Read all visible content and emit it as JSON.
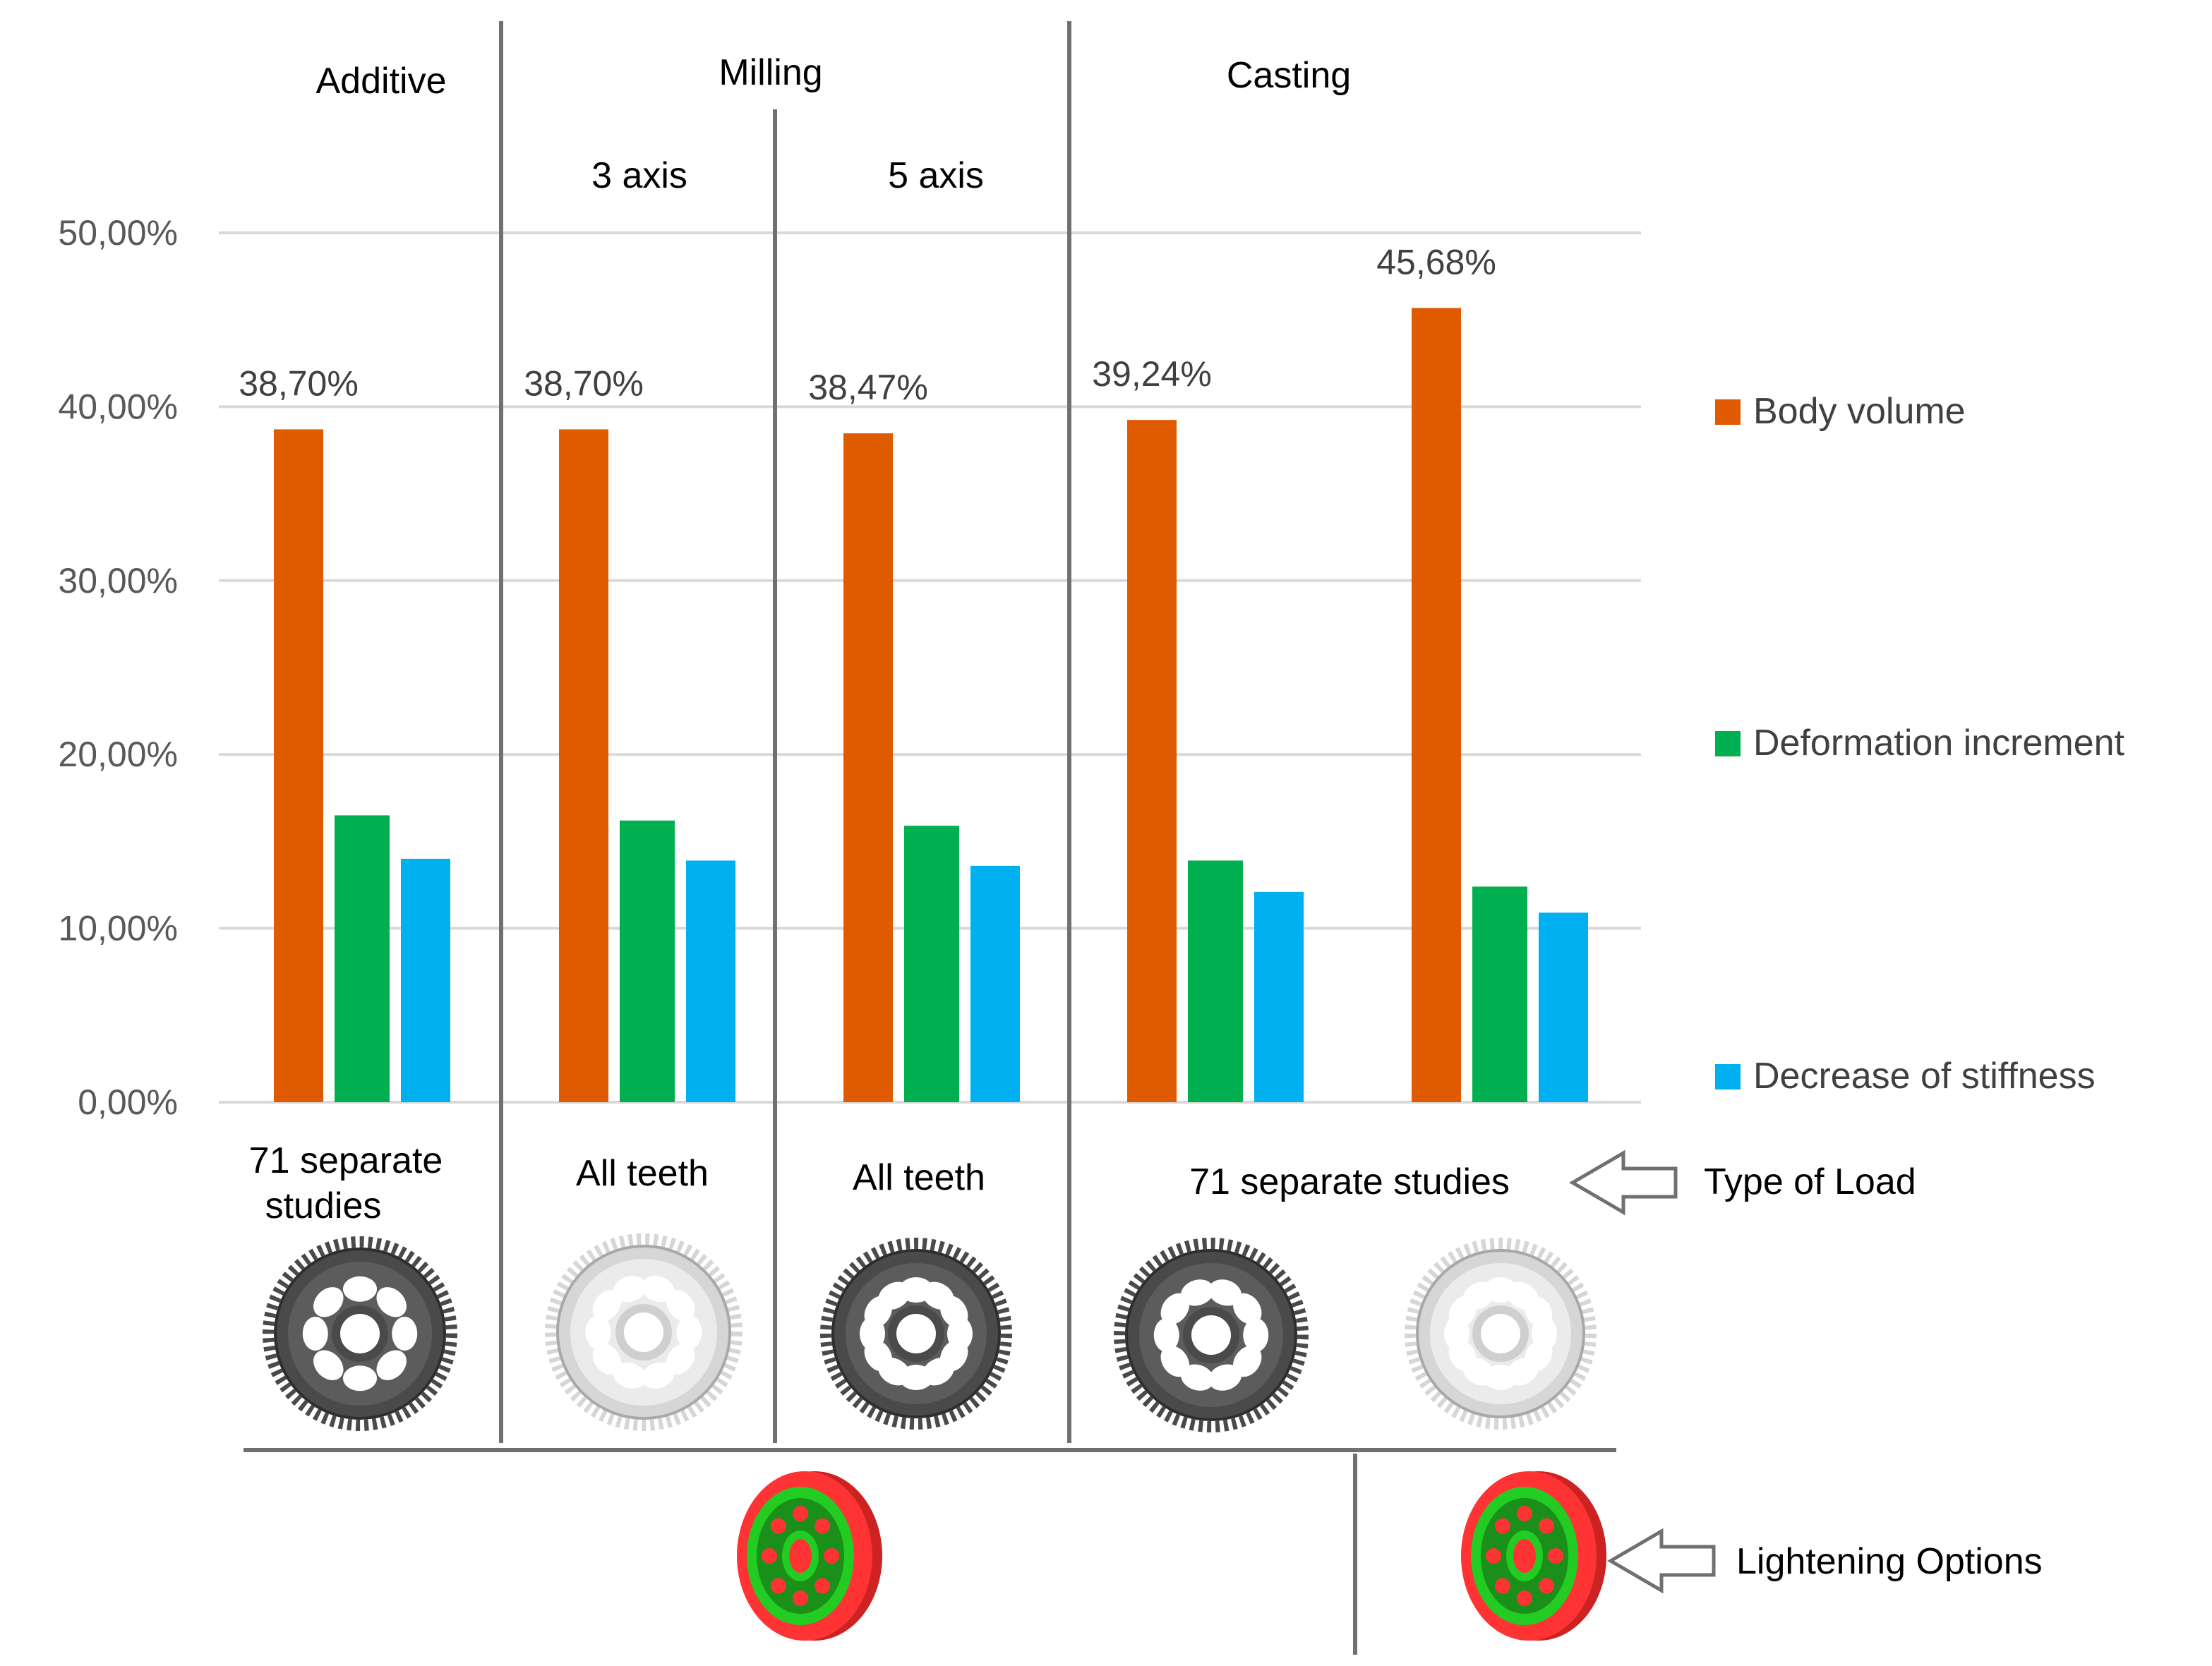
{
  "chart_data": {
    "type": "bar",
    "title": "",
    "xlabel": "",
    "ylabel": "",
    "ylim": [
      0,
      50
    ],
    "y_ticks": [
      "0,00%",
      "10,00%",
      "20,00%",
      "30,00%",
      "40,00%",
      "50,00%"
    ],
    "grid": true,
    "legend_position": "right",
    "categories": [
      "Additive",
      "Milling 3 axis",
      "Milling 5 axis",
      "Casting (option 1)",
      "Casting (option 2)"
    ],
    "series": [
      {
        "name": "Body volume",
        "color": "#e05a00",
        "values": [
          38.7,
          38.7,
          38.47,
          39.24,
          45.68
        ]
      },
      {
        "name": "Deformation increment",
        "color": "#00b050",
        "values": [
          16.5,
          16.2,
          15.9,
          13.9,
          12.4
        ]
      },
      {
        "name": "Decrease of stiffness",
        "color": "#00b0f0",
        "values": [
          14.0,
          13.9,
          13.6,
          12.1,
          10.9
        ]
      }
    ],
    "value_labels": [
      "38,70%",
      "38,70%",
      "38,47%",
      "39,24%",
      "45,68%"
    ]
  },
  "headers": {
    "additive": "Additive",
    "milling": "Milling",
    "milling_3axis": "3 axis",
    "milling_5axis": "5 axis",
    "casting": "Casting"
  },
  "load_types": {
    "additive_line1": "71 separate",
    "additive_line2": "studies",
    "milling_3axis": "All teeth",
    "milling_5axis": "All teeth",
    "casting": "71 separate studies"
  },
  "annotations": {
    "type_of_load": "Type of Load",
    "lightening_options": "Lightening  Options"
  },
  "colors": {
    "gear_dark": "#4a4a4a",
    "gear_light": "#d6d6d6",
    "option_red": "#ff3333",
    "option_green": "#22cc22"
  }
}
